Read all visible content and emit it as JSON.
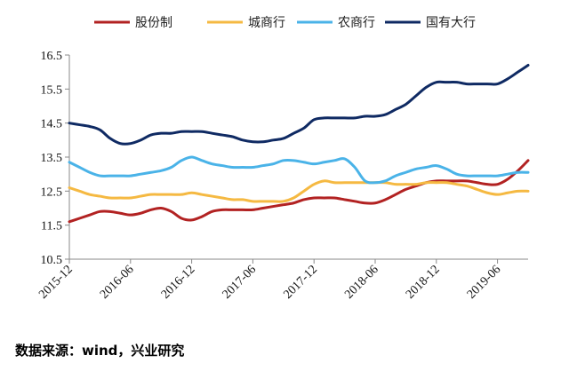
{
  "chart_data": {
    "type": "line",
    "x": [
      "2015-12",
      "2016-01",
      "2016-02",
      "2016-03",
      "2016-04",
      "2016-05",
      "2016-06",
      "2016-07",
      "2016-08",
      "2016-09",
      "2016-10",
      "2016-11",
      "2016-12",
      "2017-01",
      "2017-02",
      "2017-03",
      "2017-04",
      "2017-05",
      "2017-06",
      "2017-07",
      "2017-08",
      "2017-09",
      "2017-10",
      "2017-11",
      "2017-12",
      "2018-01",
      "2018-02",
      "2018-03",
      "2018-04",
      "2018-05",
      "2018-06",
      "2018-07",
      "2018-08",
      "2018-09",
      "2018-10",
      "2018-11",
      "2018-12",
      "2019-01",
      "2019-02",
      "2019-03",
      "2019-04",
      "2019-05",
      "2019-06",
      "2019-07",
      "2019-08",
      "2019-09"
    ],
    "x_tick_labels": [
      "2015-12",
      "2016-06",
      "2016-12",
      "2017-06",
      "2017-12",
      "2018-06",
      "2018-12",
      "2019-06"
    ],
    "y_ticks": [
      "10.5",
      "11.5",
      "12.5",
      "13.5",
      "14.5",
      "15.5",
      "16.5"
    ],
    "ylim": [
      10.5,
      16.5
    ],
    "series": [
      {
        "name": "股份制",
        "color": "#b22222",
        "values": [
          11.6,
          11.7,
          11.8,
          11.9,
          11.9,
          11.85,
          11.8,
          11.85,
          11.95,
          12.0,
          11.9,
          11.7,
          11.65,
          11.75,
          11.9,
          11.95,
          11.95,
          11.95,
          11.95,
          12.0,
          12.05,
          12.1,
          12.15,
          12.25,
          12.3,
          12.3,
          12.3,
          12.25,
          12.2,
          12.15,
          12.15,
          12.25,
          12.4,
          12.55,
          12.65,
          12.75,
          12.8,
          12.8,
          12.8,
          12.8,
          12.75,
          12.7,
          12.7,
          12.85,
          13.1,
          13.4
        ]
      },
      {
        "name": "城商行",
        "color": "#f5b942",
        "values": [
          12.6,
          12.5,
          12.4,
          12.35,
          12.3,
          12.3,
          12.3,
          12.35,
          12.4,
          12.4,
          12.4,
          12.4,
          12.45,
          12.4,
          12.35,
          12.3,
          12.25,
          12.25,
          12.2,
          12.2,
          12.2,
          12.2,
          12.3,
          12.5,
          12.7,
          12.8,
          12.75,
          12.75,
          12.75,
          12.75,
          12.75,
          12.75,
          12.7,
          12.7,
          12.7,
          12.75,
          12.75,
          12.75,
          12.7,
          12.65,
          12.55,
          12.45,
          12.4,
          12.45,
          12.5,
          12.5
        ]
      },
      {
        "name": "农商行",
        "color": "#4ab3e8",
        "values": [
          13.35,
          13.2,
          13.05,
          12.95,
          12.95,
          12.95,
          12.95,
          13.0,
          13.05,
          13.1,
          13.2,
          13.4,
          13.5,
          13.4,
          13.3,
          13.25,
          13.2,
          13.2,
          13.2,
          13.25,
          13.3,
          13.4,
          13.4,
          13.35,
          13.3,
          13.35,
          13.4,
          13.45,
          13.2,
          12.8,
          12.75,
          12.8,
          12.95,
          13.05,
          13.15,
          13.2,
          13.25,
          13.15,
          13.0,
          12.95,
          12.95,
          12.95,
          12.95,
          13.0,
          13.05,
          13.05
        ]
      },
      {
        "name": "国有大行",
        "color": "#0f2a63",
        "values": [
          14.5,
          14.45,
          14.4,
          14.3,
          14.05,
          13.9,
          13.9,
          14.0,
          14.15,
          14.2,
          14.2,
          14.25,
          14.25,
          14.25,
          14.2,
          14.15,
          14.1,
          14.0,
          13.95,
          13.95,
          14.0,
          14.05,
          14.2,
          14.35,
          14.6,
          14.65,
          14.65,
          14.65,
          14.65,
          14.7,
          14.7,
          14.75,
          14.9,
          15.05,
          15.3,
          15.55,
          15.7,
          15.7,
          15.7,
          15.65,
          15.65,
          15.65,
          15.65,
          15.8,
          16.0,
          16.2
        ]
      }
    ],
    "legend_position": "top",
    "grid": false
  },
  "source_note": "数据来源：wind，兴业研究"
}
